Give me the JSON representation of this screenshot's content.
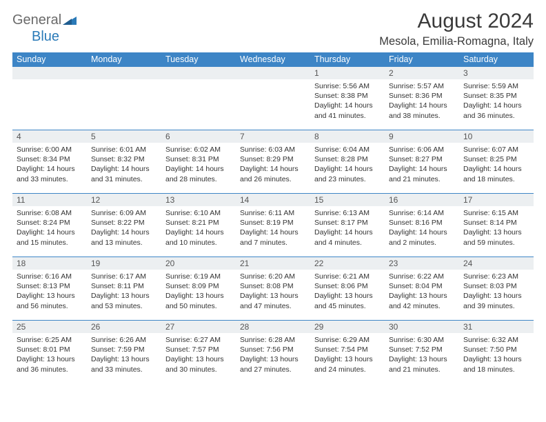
{
  "logo": {
    "word1": "General",
    "word2": "Blue"
  },
  "title": "August 2024",
  "location": "Mesola, Emilia-Romagna, Italy",
  "colors": {
    "header_bg": "#3d85c6",
    "header_text": "#ffffff",
    "daynum_bg": "#eceff1",
    "border_top": "#3d85c6",
    "body_text": "#333333",
    "logo_gray": "#6a6a6a",
    "logo_blue": "#2a7ab8"
  },
  "weekdays": [
    "Sunday",
    "Monday",
    "Tuesday",
    "Wednesday",
    "Thursday",
    "Friday",
    "Saturday"
  ],
  "weeks": [
    [
      {
        "n": "",
        "lines": []
      },
      {
        "n": "",
        "lines": []
      },
      {
        "n": "",
        "lines": []
      },
      {
        "n": "",
        "lines": []
      },
      {
        "n": "1",
        "lines": [
          "Sunrise: 5:56 AM",
          "Sunset: 8:38 PM",
          "Daylight: 14 hours and 41 minutes."
        ]
      },
      {
        "n": "2",
        "lines": [
          "Sunrise: 5:57 AM",
          "Sunset: 8:36 PM",
          "Daylight: 14 hours and 38 minutes."
        ]
      },
      {
        "n": "3",
        "lines": [
          "Sunrise: 5:59 AM",
          "Sunset: 8:35 PM",
          "Daylight: 14 hours and 36 minutes."
        ]
      }
    ],
    [
      {
        "n": "4",
        "lines": [
          "Sunrise: 6:00 AM",
          "Sunset: 8:34 PM",
          "Daylight: 14 hours and 33 minutes."
        ]
      },
      {
        "n": "5",
        "lines": [
          "Sunrise: 6:01 AM",
          "Sunset: 8:32 PM",
          "Daylight: 14 hours and 31 minutes."
        ]
      },
      {
        "n": "6",
        "lines": [
          "Sunrise: 6:02 AM",
          "Sunset: 8:31 PM",
          "Daylight: 14 hours and 28 minutes."
        ]
      },
      {
        "n": "7",
        "lines": [
          "Sunrise: 6:03 AM",
          "Sunset: 8:29 PM",
          "Daylight: 14 hours and 26 minutes."
        ]
      },
      {
        "n": "8",
        "lines": [
          "Sunrise: 6:04 AM",
          "Sunset: 8:28 PM",
          "Daylight: 14 hours and 23 minutes."
        ]
      },
      {
        "n": "9",
        "lines": [
          "Sunrise: 6:06 AM",
          "Sunset: 8:27 PM",
          "Daylight: 14 hours and 21 minutes."
        ]
      },
      {
        "n": "10",
        "lines": [
          "Sunrise: 6:07 AM",
          "Sunset: 8:25 PM",
          "Daylight: 14 hours and 18 minutes."
        ]
      }
    ],
    [
      {
        "n": "11",
        "lines": [
          "Sunrise: 6:08 AM",
          "Sunset: 8:24 PM",
          "Daylight: 14 hours and 15 minutes."
        ]
      },
      {
        "n": "12",
        "lines": [
          "Sunrise: 6:09 AM",
          "Sunset: 8:22 PM",
          "Daylight: 14 hours and 13 minutes."
        ]
      },
      {
        "n": "13",
        "lines": [
          "Sunrise: 6:10 AM",
          "Sunset: 8:21 PM",
          "Daylight: 14 hours and 10 minutes."
        ]
      },
      {
        "n": "14",
        "lines": [
          "Sunrise: 6:11 AM",
          "Sunset: 8:19 PM",
          "Daylight: 14 hours and 7 minutes."
        ]
      },
      {
        "n": "15",
        "lines": [
          "Sunrise: 6:13 AM",
          "Sunset: 8:17 PM",
          "Daylight: 14 hours and 4 minutes."
        ]
      },
      {
        "n": "16",
        "lines": [
          "Sunrise: 6:14 AM",
          "Sunset: 8:16 PM",
          "Daylight: 14 hours and 2 minutes."
        ]
      },
      {
        "n": "17",
        "lines": [
          "Sunrise: 6:15 AM",
          "Sunset: 8:14 PM",
          "Daylight: 13 hours and 59 minutes."
        ]
      }
    ],
    [
      {
        "n": "18",
        "lines": [
          "Sunrise: 6:16 AM",
          "Sunset: 8:13 PM",
          "Daylight: 13 hours and 56 minutes."
        ]
      },
      {
        "n": "19",
        "lines": [
          "Sunrise: 6:17 AM",
          "Sunset: 8:11 PM",
          "Daylight: 13 hours and 53 minutes."
        ]
      },
      {
        "n": "20",
        "lines": [
          "Sunrise: 6:19 AM",
          "Sunset: 8:09 PM",
          "Daylight: 13 hours and 50 minutes."
        ]
      },
      {
        "n": "21",
        "lines": [
          "Sunrise: 6:20 AM",
          "Sunset: 8:08 PM",
          "Daylight: 13 hours and 47 minutes."
        ]
      },
      {
        "n": "22",
        "lines": [
          "Sunrise: 6:21 AM",
          "Sunset: 8:06 PM",
          "Daylight: 13 hours and 45 minutes."
        ]
      },
      {
        "n": "23",
        "lines": [
          "Sunrise: 6:22 AM",
          "Sunset: 8:04 PM",
          "Daylight: 13 hours and 42 minutes."
        ]
      },
      {
        "n": "24",
        "lines": [
          "Sunrise: 6:23 AM",
          "Sunset: 8:03 PM",
          "Daylight: 13 hours and 39 minutes."
        ]
      }
    ],
    [
      {
        "n": "25",
        "lines": [
          "Sunrise: 6:25 AM",
          "Sunset: 8:01 PM",
          "Daylight: 13 hours and 36 minutes."
        ]
      },
      {
        "n": "26",
        "lines": [
          "Sunrise: 6:26 AM",
          "Sunset: 7:59 PM",
          "Daylight: 13 hours and 33 minutes."
        ]
      },
      {
        "n": "27",
        "lines": [
          "Sunrise: 6:27 AM",
          "Sunset: 7:57 PM",
          "Daylight: 13 hours and 30 minutes."
        ]
      },
      {
        "n": "28",
        "lines": [
          "Sunrise: 6:28 AM",
          "Sunset: 7:56 PM",
          "Daylight: 13 hours and 27 minutes."
        ]
      },
      {
        "n": "29",
        "lines": [
          "Sunrise: 6:29 AM",
          "Sunset: 7:54 PM",
          "Daylight: 13 hours and 24 minutes."
        ]
      },
      {
        "n": "30",
        "lines": [
          "Sunrise: 6:30 AM",
          "Sunset: 7:52 PM",
          "Daylight: 13 hours and 21 minutes."
        ]
      },
      {
        "n": "31",
        "lines": [
          "Sunrise: 6:32 AM",
          "Sunset: 7:50 PM",
          "Daylight: 13 hours and 18 minutes."
        ]
      }
    ]
  ]
}
